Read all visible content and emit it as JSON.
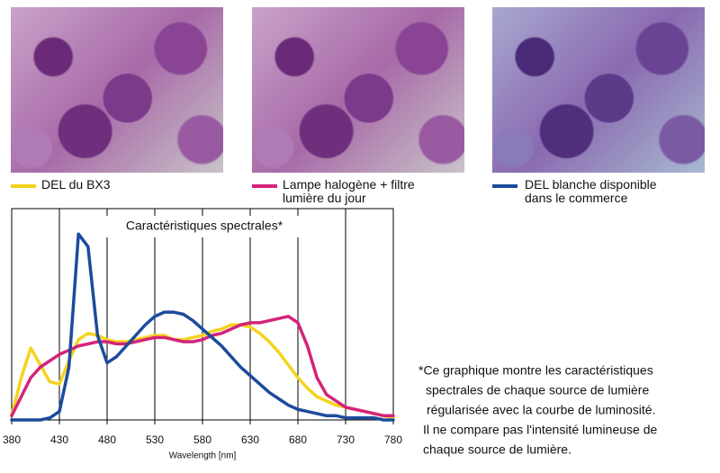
{
  "chart_data": {
    "type": "line",
    "title": "Caractéristiques spectrales*",
    "x_label": "Wavelength [nm]",
    "x": [
      380,
      390,
      400,
      410,
      420,
      430,
      440,
      450,
      460,
      470,
      480,
      490,
      500,
      510,
      520,
      530,
      540,
      550,
      560,
      570,
      580,
      590,
      600,
      610,
      620,
      630,
      640,
      650,
      660,
      670,
      680,
      690,
      700,
      710,
      720,
      730,
      740,
      750,
      760,
      770,
      780
    ],
    "series": [
      {
        "name": "DEL du BX3",
        "color": "#f5d31d",
        "values": [
          2,
          20,
          34,
          26,
          18,
          17,
          28,
          38,
          41,
          40,
          38,
          37,
          37,
          38,
          39,
          40,
          40,
          38,
          38,
          39,
          40,
          42,
          43,
          45,
          45,
          44,
          41,
          37,
          32,
          26,
          20,
          15,
          11,
          9,
          7,
          6,
          5,
          4,
          3,
          2,
          1
        ]
      },
      {
        "name": "Lampe halogène + filtre lumière du jour",
        "color": "#d4237a",
        "values": [
          2,
          11,
          20,
          25,
          28,
          31,
          33,
          35,
          36,
          37,
          37,
          36,
          36,
          37,
          38,
          39,
          39,
          38,
          37,
          37,
          38,
          40,
          41,
          43,
          45,
          46,
          46,
          47,
          48,
          49,
          46,
          35,
          20,
          12,
          9,
          6,
          5,
          4,
          3,
          2,
          2
        ]
      },
      {
        "name": "DEL blanche disponible dans le commerce",
        "color": "#1c4b9c",
        "values": [
          0,
          0,
          0,
          0,
          1,
          4,
          25,
          88,
          82,
          40,
          27,
          30,
          35,
          40,
          45,
          49,
          51,
          51,
          50,
          47,
          43,
          39,
          35,
          30,
          25,
          21,
          17,
          13,
          10,
          7,
          5,
          4,
          3,
          2,
          2,
          1,
          1,
          1,
          1,
          0,
          0
        ]
      }
    ],
    "xlim": [
      380,
      780
    ],
    "xticks": [
      380,
      430,
      480,
      530,
      580,
      630,
      680,
      730,
      780
    ],
    "ylim": [
      0,
      100
    ],
    "grid": true,
    "footnote": [
      "*Ce graphique montre les caractéristiques",
      "spectrales de chaque source de lumière",
      "régularisée avec la courbe de luminosité.",
      "Il ne compare pas l'intensité lumineuse de",
      "chaque source de lumière."
    ]
  }
}
